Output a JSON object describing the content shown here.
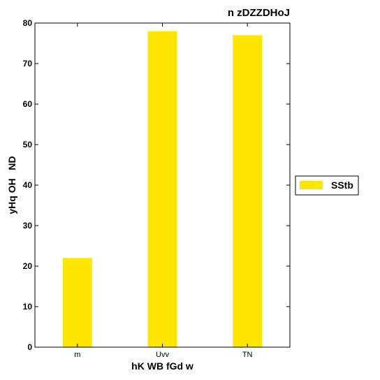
{
  "chart_data": {
    "type": "bar",
    "title": "n zDZZDHoJ",
    "xlabel": "hK WB fGd w",
    "ylabel": "yHq OH   ND",
    "categories": [
      "m",
      "Uvv",
      "TN"
    ],
    "series": [
      {
        "name": "SStb",
        "values": [
          22,
          78,
          77
        ],
        "color": "#ffe600"
      }
    ],
    "ylim": [
      0,
      80
    ],
    "yticks": [
      0,
      10,
      20,
      30,
      40,
      50,
      60,
      70,
      80
    ],
    "grid": false,
    "legend_position": "right"
  }
}
